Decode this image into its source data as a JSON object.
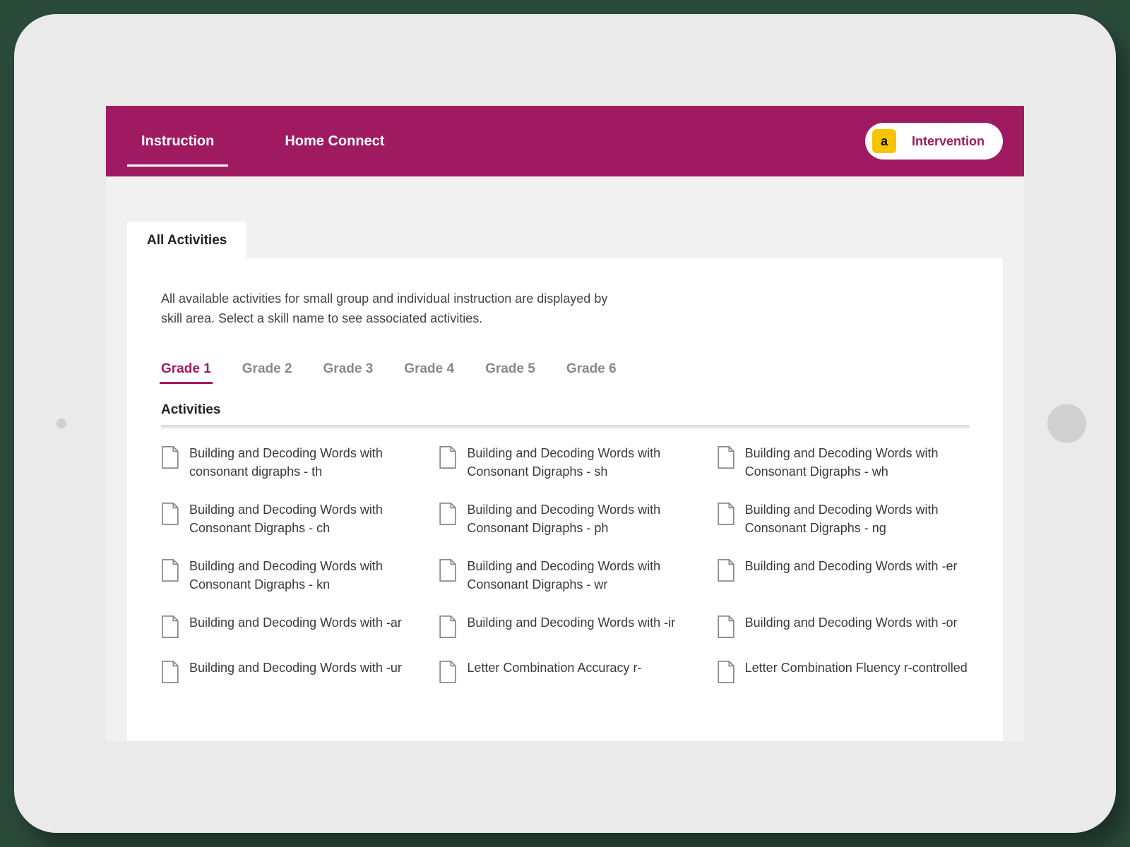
{
  "colors": {
    "brand": "#a01a62",
    "badge": "#f7c400",
    "page_bg": "#2a4a3a",
    "frame_bg": "#eaeaea",
    "screen_bg": "#f1f1f1",
    "panel_bg": "#ffffff",
    "text": "#3a3a3a",
    "muted_tab": "#888888"
  },
  "topbar": {
    "tabs": [
      {
        "label": "Instruction",
        "active": true
      },
      {
        "label": "Home Connect",
        "active": false
      }
    ],
    "pill": {
      "badge_letter": "a",
      "label": "Intervention"
    }
  },
  "section_tab": "All Activities",
  "description": "All available activities for small group and individual instruction are displayed by skill area. Select a skill name to see associated activities.",
  "grade_tabs": [
    {
      "label": "Grade 1",
      "active": true
    },
    {
      "label": "Grade 2",
      "active": false
    },
    {
      "label": "Grade 3",
      "active": false
    },
    {
      "label": "Grade 4",
      "active": false
    },
    {
      "label": "Grade 5",
      "active": false
    },
    {
      "label": "Grade 6",
      "active": false
    }
  ],
  "activities_heading": "Activities",
  "activities": [
    "Building and Decoding Words with consonant digraphs - th",
    "Building and Decoding Words with Consonant Digraphs - sh",
    "Building and Decoding Words with Consonant Digraphs - wh",
    "Building and Decoding Words with Consonant Digraphs - ch",
    "Building and Decoding Words with Consonant Digraphs - ph",
    "Building and Decoding Words with Consonant Digraphs - ng",
    "Building and Decoding Words with Consonant Digraphs - kn",
    "Building and Decoding Words with Consonant Digraphs - wr",
    "Building and Decoding Words with -er",
    "Building and Decoding Words with -ar",
    "Building and Decoding Words with -ir",
    "Building and Decoding Words with -or",
    "Building and Decoding Words with -ur",
    "Letter Combination Accuracy r-",
    "Letter Combination Fluency r-controlled"
  ]
}
